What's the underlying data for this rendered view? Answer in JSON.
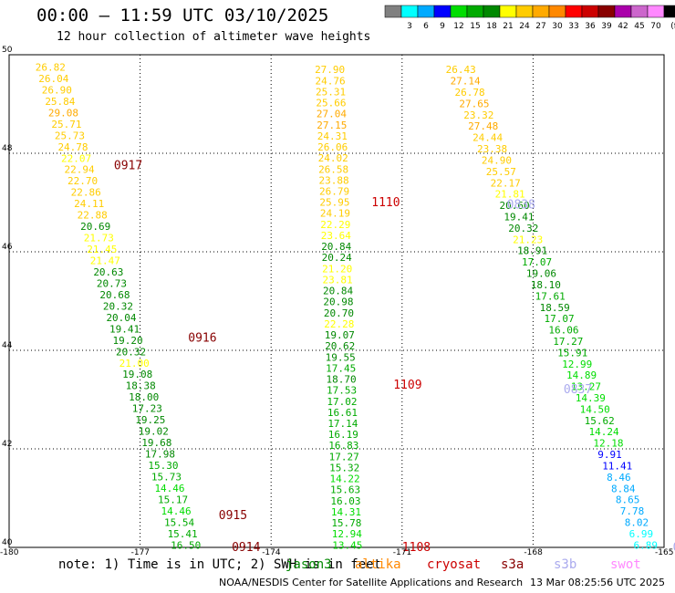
{
  "header": {
    "title": "00:00 – 11:59 UTC 03/10/2025",
    "subtitle": "12 hour collection of altimeter wave heights"
  },
  "colorbar": {
    "colors": [
      "#808080",
      "#00ffff",
      "#00aaff",
      "#0000ff",
      "#00dd00",
      "#00aa00",
      "#008800",
      "#ffff00",
      "#ffcc00",
      "#ffaa00",
      "#ff8800",
      "#ff0000",
      "#cc0000",
      "#880000",
      "#aa00aa",
      "#cc66cc",
      "#ff88ff",
      "#000000"
    ],
    "labels": [
      "3",
      "6",
      "9",
      "12",
      "15",
      "18",
      "21",
      "24",
      "27",
      "30",
      "33",
      "36",
      "39",
      "42",
      "45",
      "70"
    ],
    "unit": "(ft)"
  },
  "chart_data": {
    "type": "scatter",
    "title": "00:00 – 11:59 UTC 03/10/2025",
    "subtitle": "12 hour collection of altimeter wave heights",
    "xlabel": "",
    "ylabel": "",
    "xlim": [
      -180,
      -165
    ],
    "ylim": [
      40,
      50
    ],
    "x_ticks": [
      "-180",
      "-177",
      "-174",
      "-171",
      "-168",
      "-165"
    ],
    "y_ticks": [
      "50",
      "48",
      "46",
      "44",
      "42",
      "40"
    ],
    "grid": true,
    "passes": [
      {
        "label": "0917",
        "lon": -177.6,
        "lat": 47.75,
        "color": "#880000"
      },
      {
        "label": "0916",
        "lon": -175.9,
        "lat": 44.25,
        "color": "#880000"
      },
      {
        "label": "0915",
        "lon": -175.2,
        "lat": 40.65,
        "color": "#880000"
      },
      {
        "label": "0914",
        "lon": -174.9,
        "lat": 40.0,
        "color": "#880000"
      },
      {
        "label": "1110",
        "lon": -171.7,
        "lat": 47.0,
        "color": "#cc0000"
      },
      {
        "label": "1109",
        "lon": -171.2,
        "lat": 43.3,
        "color": "#cc0000"
      },
      {
        "label": "1108",
        "lon": -171.0,
        "lat": 40.0,
        "color": "#cc0000"
      },
      {
        "label": "0838",
        "lon": -168.6,
        "lat": 46.95,
        "color": "#aaaaee"
      },
      {
        "label": "0837",
        "lon": -167.3,
        "lat": 43.2,
        "color": "#aaaaee"
      },
      {
        "label": "083",
        "lon": -164.8,
        "lat": 40.0,
        "color": "#aaaaee"
      }
    ],
    "tracks": [
      {
        "lon_start": -179.4,
        "lat_start": 49.75,
        "lon_end": -176.3,
        "lat_end": 40.05,
        "values": [
          26.82,
          26.04,
          26.9,
          25.84,
          29.08,
          25.71,
          25.73,
          24.78,
          22.07,
          22.94,
          22.7,
          22.86,
          24.11,
          22.88,
          20.69,
          21.73,
          21.45,
          21.47,
          20.63,
          20.73,
          20.68,
          20.32,
          20.04,
          19.41,
          19.2,
          20.32,
          21.0,
          19.08,
          18.38,
          18.0,
          17.23,
          19.25,
          19.02,
          19.68,
          17.98,
          15.3,
          15.73,
          14.46,
          15.17,
          14.46,
          15.54,
          15.41,
          16.5
        ],
        "colors": [
          "#ffcc00",
          "#ffcc00",
          "#ffcc00",
          "#ffcc00",
          "#ffaa00",
          "#ffcc00",
          "#ffcc00",
          "#ffcc00",
          "#ffff00",
          "#ffcc00",
          "#ffcc00",
          "#ffcc00",
          "#ffcc00",
          "#ffcc00",
          "#008800",
          "#ffff00",
          "#ffff00",
          "#ffff00",
          "#008800",
          "#008800",
          "#008800",
          "#008800",
          "#008800",
          "#008800",
          "#008800",
          "#008800",
          "#ffff00",
          "#008800",
          "#008800",
          "#008800",
          "#008800",
          "#008800",
          "#008800",
          "#008800",
          "#008800",
          "#00aa00",
          "#00aa00",
          "#00dd00",
          "#00aa00",
          "#00dd00",
          "#00aa00",
          "#00aa00",
          "#00aa00"
        ]
      },
      {
        "lon_start": -173.0,
        "lat_start": 49.7,
        "lon_end": -172.6,
        "lat_end": 40.05,
        "values": [
          27.9,
          24.76,
          25.31,
          25.66,
          27.04,
          27.15,
          24.31,
          26.06,
          24.02,
          26.58,
          23.88,
          26.79,
          25.95,
          24.19,
          22.29,
          23.64,
          20.84,
          20.24,
          21.2,
          23.81,
          20.84,
          20.98,
          20.7,
          22.28,
          19.07,
          20.62,
          19.55,
          17.45,
          18.7,
          17.53,
          17.02,
          16.61,
          17.14,
          16.19,
          16.83,
          17.27,
          15.32,
          14.22,
          15.63,
          16.03,
          14.31,
          15.78,
          12.94,
          13.45
        ],
        "colors": [
          "#ffcc00",
          "#ffcc00",
          "#ffcc00",
          "#ffcc00",
          "#ffaa00",
          "#ffaa00",
          "#ffcc00",
          "#ffcc00",
          "#ffcc00",
          "#ffcc00",
          "#ffcc00",
          "#ffcc00",
          "#ffcc00",
          "#ffcc00",
          "#ffff00",
          "#ffff00",
          "#008800",
          "#008800",
          "#ffff00",
          "#ffff00",
          "#008800",
          "#008800",
          "#008800",
          "#ffff00",
          "#008800",
          "#008800",
          "#008800",
          "#00aa00",
          "#008800",
          "#00aa00",
          "#00aa00",
          "#00aa00",
          "#00aa00",
          "#00aa00",
          "#00aa00",
          "#00aa00",
          "#00aa00",
          "#00dd00",
          "#00aa00",
          "#00aa00",
          "#00dd00",
          "#00aa00",
          "#00dd00",
          "#00dd00"
        ]
      },
      {
        "lon_start": -170.0,
        "lat_start": 49.7,
        "lon_end": -165.7,
        "lat_end": 40.05,
        "values": [
          26.43,
          27.14,
          26.78,
          27.65,
          23.32,
          27.48,
          24.44,
          23.38,
          24.9,
          25.57,
          22.17,
          21.81,
          20.6,
          19.41,
          20.32,
          21.23,
          18.91,
          17.07,
          19.06,
          18.1,
          17.61,
          18.59,
          17.07,
          16.06,
          17.27,
          15.91,
          12.99,
          14.89,
          13.27,
          14.39,
          14.5,
          15.62,
          14.24,
          12.18,
          9.91,
          11.41,
          8.46,
          8.84,
          8.65,
          7.78,
          8.02,
          6.99,
          6.89
        ],
        "colors": [
          "#ffcc00",
          "#ffaa00",
          "#ffcc00",
          "#ffaa00",
          "#ffcc00",
          "#ffaa00",
          "#ffcc00",
          "#ffcc00",
          "#ffcc00",
          "#ffcc00",
          "#ffcc00",
          "#ffff00",
          "#008800",
          "#008800",
          "#008800",
          "#ffff00",
          "#008800",
          "#00aa00",
          "#008800",
          "#008800",
          "#00aa00",
          "#008800",
          "#00aa00",
          "#00aa00",
          "#00aa00",
          "#00aa00",
          "#00dd00",
          "#00dd00",
          "#00dd00",
          "#00dd00",
          "#00dd00",
          "#00aa00",
          "#00dd00",
          "#00dd00",
          "#0000ff",
          "#0000ff",
          "#00aaff",
          "#00aaff",
          "#00aaff",
          "#00aaff",
          "#00aaff",
          "#00ffff",
          "#00ffff"
        ]
      }
    ]
  },
  "note": {
    "text": "note: 1) Time is in UTC; 2) SWH is in feet"
  },
  "legend": [
    {
      "name": "jason3",
      "color": "#008800"
    },
    {
      "name": "altika",
      "color": "#ff8800"
    },
    {
      "name": "cryosat",
      "color": "#cc0000"
    },
    {
      "name": "s3a",
      "color": "#880000"
    },
    {
      "name": "s3b",
      "color": "#aaaaee"
    },
    {
      "name": "swot",
      "color": "#ff88ff"
    }
  ],
  "footer": {
    "credit": "NOAA/NESDIS Center for Satellite Applications and Research",
    "timestamp": "13 Mar 08:25:56 UTC 2025"
  }
}
